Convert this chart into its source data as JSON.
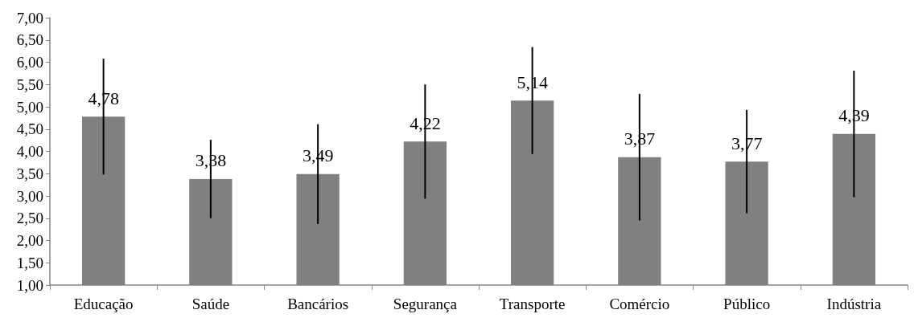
{
  "chart_data": {
    "type": "bar",
    "categories": [
      "Educação",
      "Saúde",
      "Bancários",
      "Segurança",
      "Transporte",
      "Comércio",
      "Público",
      "Indústria"
    ],
    "values": [
      4.78,
      3.38,
      3.49,
      4.22,
      5.14,
      3.87,
      3.77,
      4.39
    ],
    "value_labels": [
      "4,78",
      "3,38",
      "3,49",
      "4,22",
      "5,14",
      "3,87",
      "3,77",
      "4,39"
    ],
    "errors": [
      1.3,
      0.88,
      1.12,
      1.28,
      1.2,
      1.42,
      1.16,
      1.42
    ],
    "color": "#808080",
    "ylim": [
      1,
      7
    ],
    "yticks": [
      {
        "value": 1,
        "label": "1,00"
      },
      {
        "value": 1.5,
        "label": "1,50"
      },
      {
        "value": 2,
        "label": "2,00"
      },
      {
        "value": 2.5,
        "label": "2,50"
      },
      {
        "value": 3,
        "label": "3,00"
      },
      {
        "value": 3.5,
        "label": "3,50"
      },
      {
        "value": 4,
        "label": "4,00"
      },
      {
        "value": 4.5,
        "label": "4,50"
      },
      {
        "value": 5,
        "label": "5,00"
      },
      {
        "value": 5.5,
        "label": "5,50"
      },
      {
        "value": 6,
        "label": "6,00"
      },
      {
        "value": 6.5,
        "label": "6,50"
      },
      {
        "value": 7,
        "label": "7,00"
      }
    ],
    "grid": false
  }
}
